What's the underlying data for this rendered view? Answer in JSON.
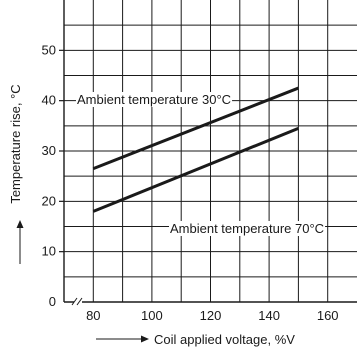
{
  "chart_data": {
    "type": "line",
    "xlabel": "Coil applied voltage, %V",
    "ylabel": "Temperature rise, °C",
    "xlim": [
      70,
      170
    ],
    "ylim": [
      0,
      60
    ],
    "x_ticks": [
      "80",
      "100",
      "120",
      "140",
      "160"
    ],
    "y_ticks": [
      "0",
      "10",
      "20",
      "30",
      "40",
      "50"
    ],
    "grid": true,
    "axis_break": true,
    "series": [
      {
        "name": "Ambient temperature 30°C",
        "x": [
          80,
          150
        ],
        "values": [
          26.5,
          42.5
        ]
      },
      {
        "name": "Ambient temperature 70°C",
        "x": [
          80,
          150
        ],
        "values": [
          18,
          34.5
        ]
      }
    ]
  }
}
